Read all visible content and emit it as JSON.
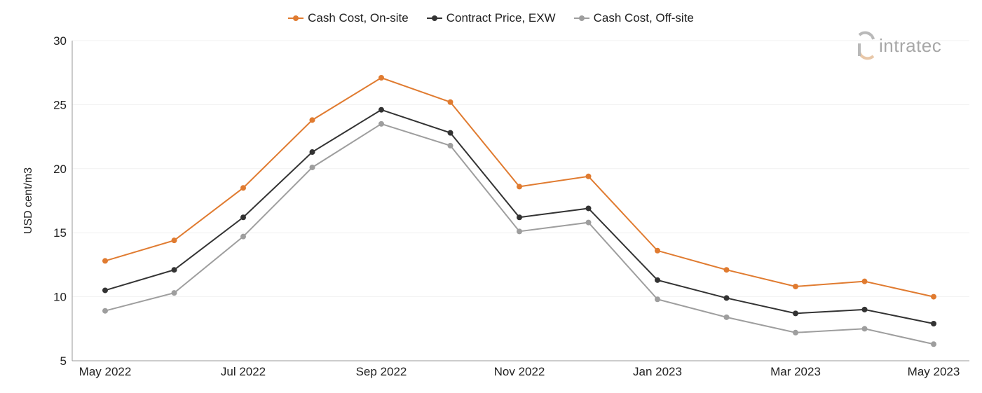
{
  "logo": {
    "text": "intratec"
  },
  "chart_data": {
    "type": "line",
    "title": "",
    "xlabel": "",
    "ylabel": "USD cent/m3",
    "ylim": [
      5,
      30
    ],
    "yticks": [
      "5",
      "10",
      "15",
      "20",
      "25",
      "30"
    ],
    "grid": true,
    "legend_position": "top",
    "x": [
      "May 2022",
      "Jun 2022",
      "Jul 2022",
      "Aug 2022",
      "Sep 2022",
      "Oct 2022",
      "Nov 2022",
      "Dec 2022",
      "Jan 2023",
      "Feb 2023",
      "Mar 2023",
      "Apr 2023",
      "May 2023"
    ],
    "xtick_labels": [
      "May 2022",
      "Jul 2022",
      "Sep 2022",
      "Nov 2022",
      "Jan 2023",
      "Mar 2023",
      "May 2023"
    ],
    "series": [
      {
        "name": "Cash Cost, On-site",
        "color": "#e07b30",
        "values": [
          12.8,
          14.4,
          18.5,
          23.8,
          27.1,
          25.2,
          18.6,
          19.4,
          13.6,
          12.1,
          10.8,
          11.2,
          10.0
        ]
      },
      {
        "name": "Contract Price, EXW",
        "color": "#333333",
        "values": [
          10.5,
          12.1,
          16.2,
          21.3,
          24.6,
          22.8,
          16.2,
          16.9,
          11.3,
          9.9,
          8.7,
          9.0,
          7.9
        ]
      },
      {
        "name": "Cash Cost, Off-site",
        "color": "#9e9e9e",
        "values": [
          8.9,
          10.3,
          14.7,
          20.1,
          23.5,
          21.8,
          15.1,
          15.8,
          9.8,
          8.4,
          7.2,
          7.5,
          6.3
        ]
      }
    ]
  }
}
